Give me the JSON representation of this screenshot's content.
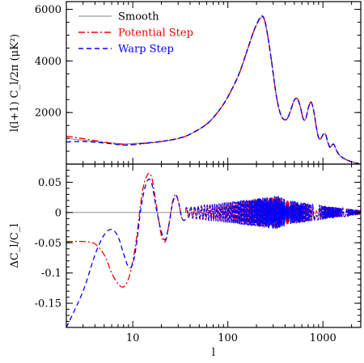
{
  "chart_data": [
    {
      "type": "line",
      "panel": "top",
      "ylabel": "l(l+1)  C_l/2π  (μK²)",
      "ylim": [
        0,
        6300
      ],
      "yticks": [
        2000,
        4000,
        6000
      ],
      "ytick_labels": [
        "2000",
        "4000",
        "6000"
      ],
      "xscale": "log",
      "xlim": [
        2,
        2500
      ],
      "grid": false,
      "legend_position": "top-left",
      "series": [
        {
          "name": "Smooth",
          "color": "#9a9a9a",
          "dash": "solid",
          "x": [
            2,
            3,
            5,
            8,
            10,
            15,
            20,
            30,
            40,
            60,
            80,
            100,
            130,
            160,
            190,
            220,
            240,
            260,
            290,
            320,
            350,
            380,
            420,
            460,
            500,
            540,
            580,
            620,
            660,
            700,
            750,
            800,
            850,
            900,
            950,
            1000,
            1060,
            1120,
            1180,
            1240,
            1300,
            1400,
            1500,
            1700,
            2000,
            2400
          ],
          "y": [
            1000,
            930,
            840,
            790,
            800,
            830,
            870,
            990,
            1150,
            1550,
            2050,
            2600,
            3450,
            4400,
            5200,
            5650,
            5620,
            5050,
            3900,
            2750,
            2050,
            1750,
            1750,
            2100,
            2480,
            2520,
            2200,
            1750,
            1750,
            2150,
            2400,
            2050,
            1450,
            1020,
            980,
            1130,
            1160,
            870,
            650,
            720,
            760,
            500,
            330,
            200,
            90,
            20
          ]
        },
        {
          "name": "Potential Step",
          "color": "#ff0000",
          "dash": "dashdot",
          "x": [
            2,
            3,
            5,
            8,
            10,
            15,
            20,
            30,
            40,
            60,
            80,
            100,
            130,
            160,
            190,
            220,
            240,
            260,
            290,
            320,
            350,
            380,
            420,
            460,
            500,
            540,
            580,
            620,
            660,
            700,
            750,
            800,
            850,
            900,
            950,
            1000,
            1060,
            1120,
            1180,
            1240,
            1300,
            1400,
            1500,
            1700,
            2000,
            2400
          ],
          "y": [
            1080,
            990,
            850,
            760,
            760,
            820,
            880,
            990,
            1160,
            1560,
            2060,
            2610,
            3460,
            4420,
            5220,
            5680,
            5650,
            5070,
            3920,
            2760,
            2060,
            1760,
            1760,
            2110,
            2490,
            2530,
            2210,
            1760,
            1760,
            2160,
            2410,
            2060,
            1460,
            1030,
            990,
            1140,
            1170,
            880,
            660,
            730,
            770,
            510,
            340,
            200,
            90,
            20
          ]
        },
        {
          "name": "Warp Step",
          "color": "#0000ff",
          "dash": "dashed",
          "x": [
            2,
            3,
            5,
            8,
            10,
            15,
            20,
            30,
            40,
            60,
            80,
            100,
            130,
            160,
            190,
            220,
            240,
            260,
            290,
            320,
            350,
            380,
            420,
            460,
            500,
            540,
            580,
            620,
            660,
            700,
            750,
            800,
            850,
            900,
            950,
            1000,
            1060,
            1120,
            1180,
            1240,
            1300,
            1400,
            1500,
            1700,
            2000,
            2400
          ],
          "y": [
            860,
            880,
            820,
            740,
            760,
            830,
            880,
            1000,
            1160,
            1550,
            2060,
            2610,
            3470,
            4420,
            5220,
            5690,
            5660,
            5080,
            3910,
            2760,
            2060,
            1760,
            1760,
            2110,
            2490,
            2530,
            2210,
            1760,
            1760,
            2160,
            2410,
            2060,
            1460,
            1030,
            990,
            1140,
            1170,
            880,
            660,
            730,
            770,
            510,
            340,
            200,
            90,
            20
          ]
        }
      ]
    },
    {
      "type": "line",
      "panel": "bottom",
      "xlabel": "l",
      "ylabel": "ΔC_l/C_l",
      "ylim": [
        -0.19,
        0.08
      ],
      "yticks": [
        0.05,
        0,
        -0.05,
        -0.1,
        -0.15
      ],
      "ytick_labels": [
        "0.05",
        "0",
        "-0.05",
        "-0.1",
        "-0.15"
      ],
      "xscale": "log",
      "xlim": [
        2,
        2500
      ],
      "xticks": [
        10,
        100,
        1000
      ],
      "xtick_labels": [
        "10",
        "100",
        "1000"
      ],
      "grid": false,
      "series": [
        {
          "name": "Smooth",
          "color": "#9a9a9a",
          "dash": "solid",
          "x": [
            2,
            2500
          ],
          "y": [
            0,
            0
          ]
        },
        {
          "name": "Potential Step",
          "color": "#ff0000",
          "dash": "dashdot",
          "x": [
            2,
            3,
            4,
            5,
            6,
            7,
            8,
            9,
            10,
            11,
            12,
            13,
            14,
            15,
            16,
            17,
            18,
            20,
            22,
            24,
            26,
            28,
            30,
            33,
            36
          ],
          "y": [
            -0.048,
            -0.048,
            -0.052,
            -0.07,
            -0.1,
            -0.118,
            -0.123,
            -0.11,
            -0.08,
            -0.04,
            0.01,
            0.045,
            0.06,
            0.065,
            0.055,
            0.03,
            0.005,
            -0.038,
            -0.048,
            -0.02,
            0.015,
            0.03,
            0.02,
            -0.01,
            -0.012
          ],
          "oscillation": {
            "x_start": 36,
            "x_end": 2500,
            "peak_x": 340,
            "peak_amplitude": 0.026,
            "base_amplitude": 0.008,
            "end_amplitude": 0.004,
            "min_points_per_cycle": 2,
            "phase": 0
          }
        },
        {
          "name": "Warp Step",
          "color": "#0000ff",
          "dash": "dashed",
          "x": [
            2,
            3,
            4,
            5,
            6,
            7,
            8,
            9,
            10,
            11,
            12,
            13,
            14,
            15,
            16,
            17,
            18,
            20,
            22,
            24,
            26,
            28,
            30,
            33,
            36
          ],
          "y": [
            -0.19,
            -0.13,
            -0.07,
            -0.037,
            -0.028,
            -0.04,
            -0.068,
            -0.09,
            -0.085,
            -0.05,
            0.0,
            0.032,
            0.05,
            0.055,
            0.045,
            0.022,
            0.0,
            -0.032,
            -0.045,
            -0.02,
            0.012,
            0.028,
            0.02,
            -0.01,
            -0.012
          ],
          "oscillation": {
            "x_start": 36,
            "x_end": 2500,
            "peak_x": 340,
            "peak_amplitude": 0.028,
            "base_amplitude": 0.008,
            "end_amplitude": 0.004,
            "min_points_per_cycle": 2,
            "phase": 0.6
          }
        }
      ]
    }
  ]
}
